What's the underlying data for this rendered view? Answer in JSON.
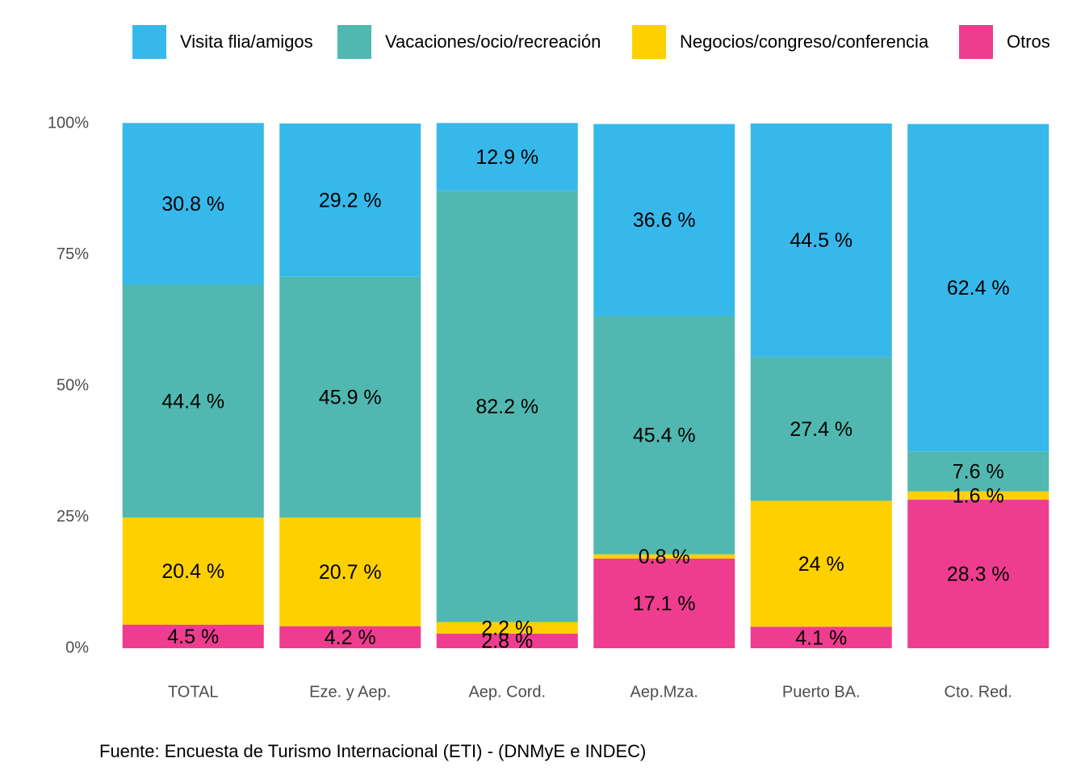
{
  "chart_data": {
    "type": "stacked_bar",
    "categories": [
      "TOTAL",
      "Eze. y Aep.",
      "Aep. Cord.",
      "Aep.Mza.",
      "Puerto BA.",
      "Cto. Red."
    ],
    "series": [
      {
        "name": "Visita flia/amigos",
        "color": "#37b8eb",
        "values": [
          30.8,
          29.2,
          12.9,
          36.6,
          44.5,
          62.4
        ],
        "value_labels": [
          "30.8 %",
          "29.2 %",
          "12.9 %",
          "36.6 %",
          "44.5 %",
          "62.4 %"
        ]
      },
      {
        "name": "Vacaciones/ocio/recreación",
        "color": "#50b8b0",
        "values": [
          44.4,
          45.9,
          82.2,
          45.4,
          27.4,
          7.6
        ],
        "value_labels": [
          "44.4 %",
          "45.9 %",
          "82.2 %",
          "45.4 %",
          "27.4 %",
          "7.6 %"
        ]
      },
      {
        "name": "Negocios/congreso/conferencia",
        "color": "#ffd000",
        "values": [
          20.4,
          20.7,
          2.2,
          0.8,
          24,
          1.6
        ],
        "value_labels": [
          "20.4 %",
          "20.7 %",
          "2.2 %",
          "0.8 %",
          "24 %",
          "1.6 %"
        ]
      },
      {
        "name": "Otros",
        "color": "#ee3d8f",
        "values": [
          4.5,
          4.2,
          2.8,
          17.1,
          4.1,
          28.3
        ],
        "value_labels": [
          "4.5 %",
          "4.2 %",
          "2.8 %",
          "17.1 %",
          "4.1 %",
          "28.3 %"
        ]
      }
    ],
    "ylim": [
      0,
      100
    ],
    "yticks": [
      {
        "value": 0,
        "label": "0%"
      },
      {
        "value": 25,
        "label": "25%"
      },
      {
        "value": 50,
        "label": "50%"
      },
      {
        "value": 75,
        "label": "75%"
      },
      {
        "value": 100,
        "label": "100%"
      }
    ],
    "legend": "top",
    "caption": "Fuente: Encuesta de Turismo Internacional (ETI) - (DNMyE e INDEC)"
  }
}
